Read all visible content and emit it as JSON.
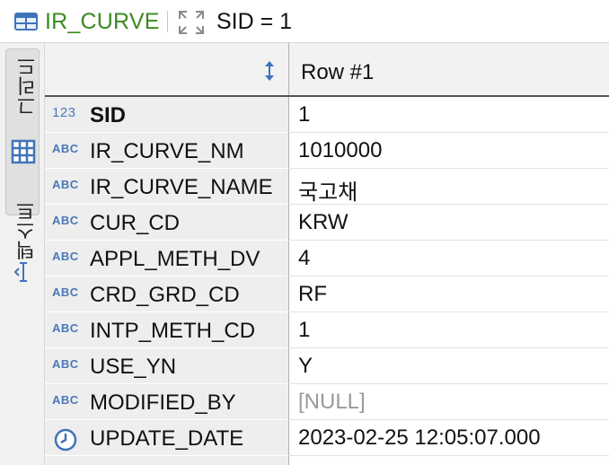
{
  "header": {
    "table_name": "IR_CURVE",
    "filter_text": "SID = 1"
  },
  "side_tabs": {
    "grid_label": "그리드",
    "text_label": "텍스트"
  },
  "grid": {
    "column_header": "Row  #1",
    "rows": [
      {
        "type": "123",
        "name": "SID",
        "value": "1"
      },
      {
        "type": "ABC",
        "name": "IR_CURVE_NM",
        "value": "1010000"
      },
      {
        "type": "ABC",
        "name": "IR_CURVE_NAME",
        "value": "국고채"
      },
      {
        "type": "ABC",
        "name": "CUR_CD",
        "value": "KRW"
      },
      {
        "type": "ABC",
        "name": "APPL_METH_DV",
        "value": "4"
      },
      {
        "type": "ABC",
        "name": "CRD_GRD_CD",
        "value": "RF"
      },
      {
        "type": "ABC",
        "name": "INTP_METH_CD",
        "value": "1"
      },
      {
        "type": "ABC",
        "name": "USE_YN",
        "value": "Y"
      },
      {
        "type": "ABC",
        "name": "MODIFIED_BY",
        "value": "[NULL]"
      },
      {
        "type": "clock",
        "name": "UPDATE_DATE",
        "value": "2023-02-25 12:05:07.000"
      }
    ]
  },
  "icons": {
    "table": "table-icon",
    "expand": "expand-icon",
    "sort": "sort-updown-icon",
    "grid": "grid-icon",
    "text": "text-cursor-icon",
    "datetime": "clock-icon"
  },
  "colors": {
    "title_green": "#3b8a22",
    "type_blue": "#4a78b8",
    "null_gray": "#9a9a9a"
  }
}
